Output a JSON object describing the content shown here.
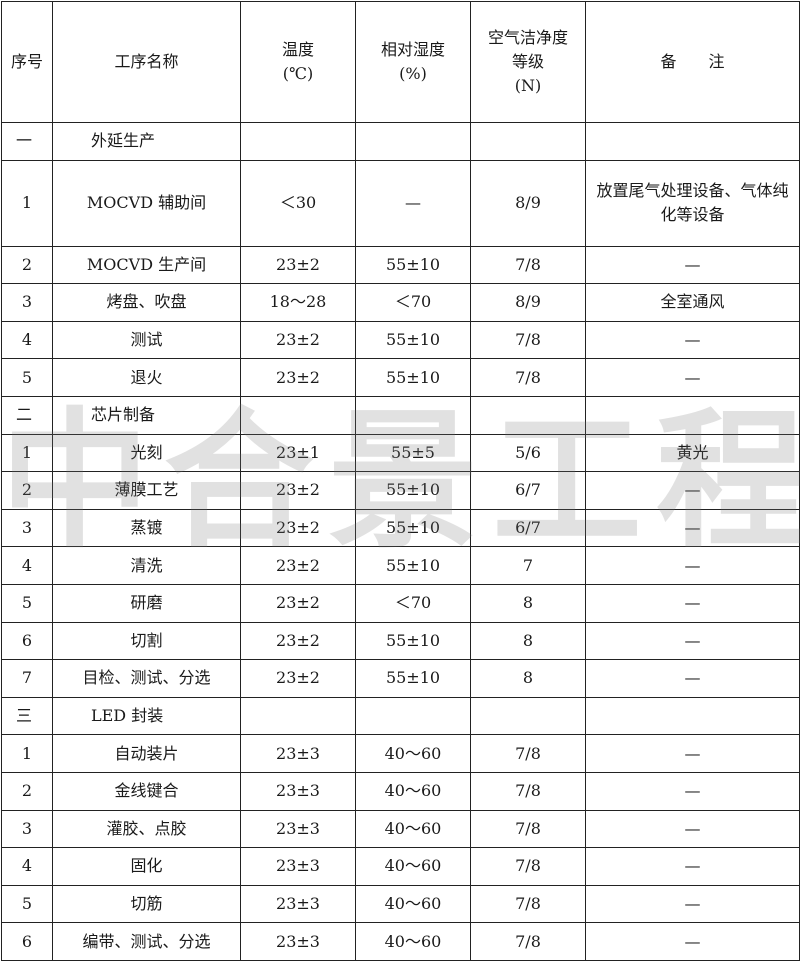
{
  "watermark": "中合景工程",
  "headers": [
    "序号",
    "工序名称",
    "温度\n(℃)",
    "相对湿度\n(%)",
    "空气洁净度\n等级\n(N)",
    "备　　注"
  ],
  "rows": [
    {
      "type": "section",
      "no": "一",
      "name": "外延生产",
      "temp": "",
      "rh": "",
      "class": "",
      "note": ""
    },
    {
      "type": "tall",
      "no": "1",
      "name": "MOCVD 辅助间",
      "temp": "＜30",
      "rh": "—",
      "class": "8/9",
      "note": "放置尾气处理设备、气体纯化等设备"
    },
    {
      "type": "r",
      "no": "2",
      "name": "MOCVD 生产间",
      "temp": "23±2",
      "rh": "55±10",
      "class": "7/8",
      "note": "—"
    },
    {
      "type": "r",
      "no": "3",
      "name": "烤盘、吹盘",
      "temp": "18～28",
      "rh": "＜70",
      "class": "8/9",
      "note": "全室通风"
    },
    {
      "type": "r",
      "no": "4",
      "name": "测试",
      "temp": "23±2",
      "rh": "55±10",
      "class": "7/8",
      "note": "—"
    },
    {
      "type": "r",
      "no": "5",
      "name": "退火",
      "temp": "23±2",
      "rh": "55±10",
      "class": "7/8",
      "note": "—"
    },
    {
      "type": "section",
      "no": "二",
      "name": "芯片制备",
      "temp": "",
      "rh": "",
      "class": "",
      "note": ""
    },
    {
      "type": "r",
      "no": "1",
      "name": "光刻",
      "temp": "23±1",
      "rh": "55±5",
      "class": "5/6",
      "note": "黄光"
    },
    {
      "type": "r",
      "no": "2",
      "name": "薄膜工艺",
      "temp": "23±2",
      "rh": "55±10",
      "class": "6/7",
      "note": "—"
    },
    {
      "type": "r",
      "no": "3",
      "name": "蒸镀",
      "temp": "23±2",
      "rh": "55±10",
      "class": "6/7",
      "note": "—"
    },
    {
      "type": "r",
      "no": "4",
      "name": "清洗",
      "temp": "23±2",
      "rh": "55±10",
      "class": "7",
      "note": "—"
    },
    {
      "type": "r",
      "no": "5",
      "name": "研磨",
      "temp": "23±2",
      "rh": "＜70",
      "class": "8",
      "note": "—"
    },
    {
      "type": "r",
      "no": "6",
      "name": "切割",
      "temp": "23±2",
      "rh": "55±10",
      "class": "8",
      "note": "—"
    },
    {
      "type": "r",
      "no": "7",
      "name": "目检、测试、分选",
      "temp": "23±2",
      "rh": "55±10",
      "class": "8",
      "note": "—"
    },
    {
      "type": "section",
      "no": "三",
      "name": "LED 封装",
      "temp": "",
      "rh": "",
      "class": "",
      "note": ""
    },
    {
      "type": "r",
      "no": "1",
      "name": "自动装片",
      "temp": "23±3",
      "rh": "40～60",
      "class": "7/8",
      "note": "—"
    },
    {
      "type": "r",
      "no": "2",
      "name": "金线键合",
      "temp": "23±3",
      "rh": "40～60",
      "class": "7/8",
      "note": "—"
    },
    {
      "type": "r",
      "no": "3",
      "name": "灌胶、点胶",
      "temp": "23±3",
      "rh": "40～60",
      "class": "7/8",
      "note": "—"
    },
    {
      "type": "r",
      "no": "4",
      "name": "固化",
      "temp": "23±3",
      "rh": "40～60",
      "class": "7/8",
      "note": "—"
    },
    {
      "type": "r",
      "no": "5",
      "name": "切筋",
      "temp": "23±3",
      "rh": "40～60",
      "class": "7/8",
      "note": "—"
    },
    {
      "type": "r",
      "no": "6",
      "name": "编带、测试、分选",
      "temp": "23±3",
      "rh": "40～60",
      "class": "7/8",
      "note": "—"
    }
  ]
}
